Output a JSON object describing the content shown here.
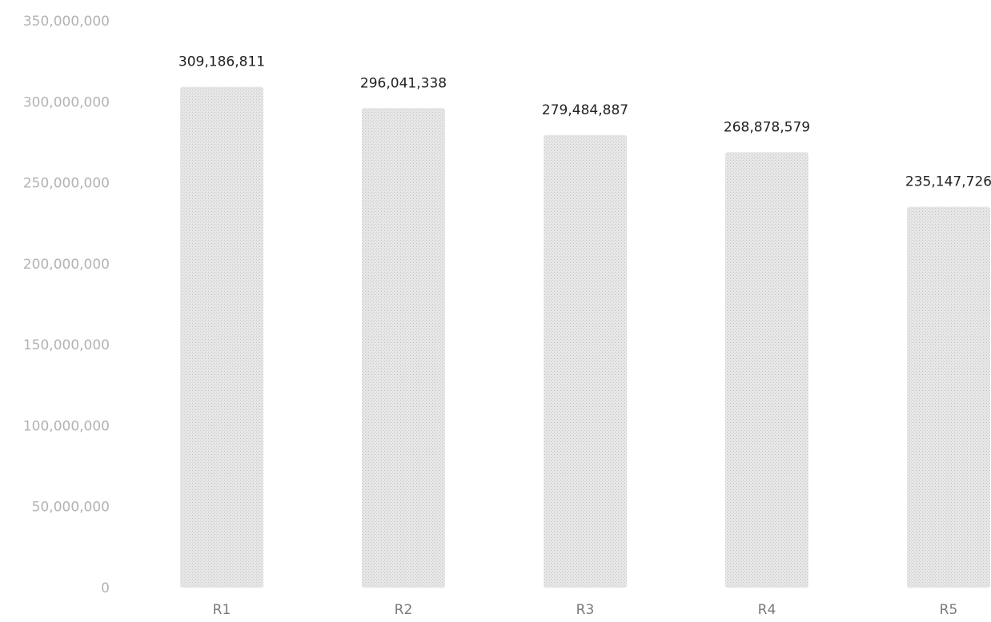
{
  "chart_data": {
    "type": "bar",
    "categories": [
      "R1",
      "R2",
      "R3",
      "R4",
      "R5"
    ],
    "values": [
      309186811,
      296041338,
      279484887,
      268878579,
      235147726
    ],
    "data_labels": [
      "309,186,811",
      "296,041,338",
      "279,484,887",
      "268,878,579",
      "235,147,726"
    ],
    "y_ticks": [
      "0",
      "50,000,000",
      "100,000,000",
      "150,000,000",
      "200,000,000",
      "250,000,000",
      "300,000,000",
      "350,000,000"
    ],
    "ylim": [
      0,
      350000000
    ],
    "grid": false,
    "legend": "none",
    "bar_color": "#d9d9d9",
    "bar_fill_style": "stippled"
  }
}
